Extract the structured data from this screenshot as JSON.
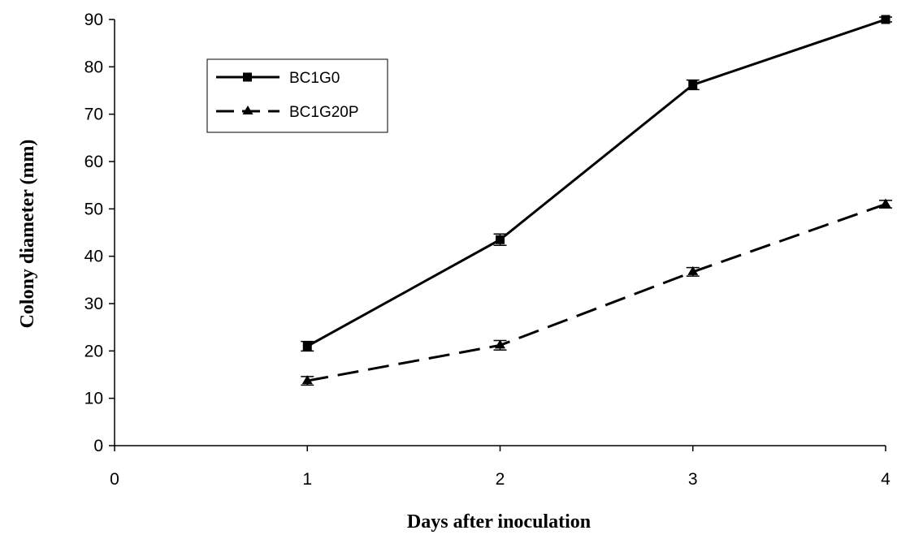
{
  "chart_data": {
    "type": "line",
    "xlabel": "Days after inoculation",
    "ylabel": "Colony diameter (mm)",
    "xlim": [
      0,
      4
    ],
    "ylim": [
      0,
      90
    ],
    "xticks": [
      "0",
      "1",
      "2",
      "3",
      "4"
    ],
    "yticks": [
      "0",
      "10",
      "20",
      "30",
      "40",
      "50",
      "60",
      "70",
      "80",
      "90"
    ],
    "grid": false,
    "legend_position": "top-left",
    "series": [
      {
        "name": "BC1G0",
        "style": "solid",
        "marker": "square",
        "x": [
          1,
          2,
          3,
          4
        ],
        "y": [
          21,
          43.5,
          76.2,
          90
        ],
        "error": [
          1,
          1.2,
          1,
          0.5
        ]
      },
      {
        "name": "BC1G20P",
        "style": "dashed",
        "marker": "triangle",
        "x": [
          1,
          2,
          3,
          4
        ],
        "y": [
          13.7,
          21.2,
          36.7,
          51
        ],
        "error": [
          0.9,
          1,
          0.9,
          0.8
        ]
      }
    ]
  }
}
